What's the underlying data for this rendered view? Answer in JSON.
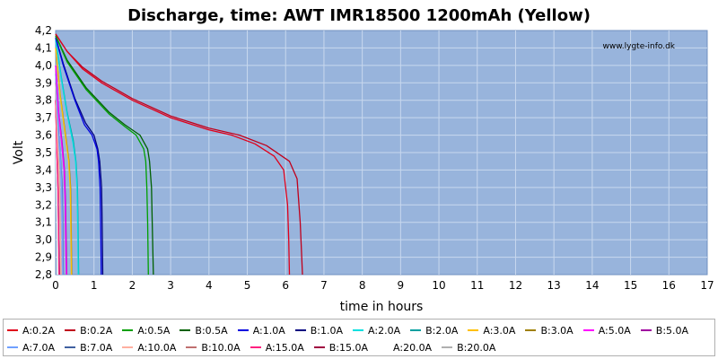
{
  "chart_data": {
    "type": "line",
    "title": "Discharge, time: AWT IMR18500 1200mAh (Yellow)",
    "xlabel": "time in hours",
    "ylabel": "Volt",
    "watermark": "www.lygte-info.dk",
    "xlim": [
      0,
      17
    ],
    "ylim": [
      2.8,
      4.2
    ],
    "xticks": [
      "0",
      "1",
      "2",
      "3",
      "4",
      "5",
      "6",
      "7",
      "8",
      "9",
      "10",
      "11",
      "12",
      "13",
      "14",
      "15",
      "16",
      "17"
    ],
    "yticks": [
      "2,8",
      "2,9",
      "3,0",
      "3,1",
      "3,2",
      "3,3",
      "3,4",
      "3,5",
      "3,6",
      "3,7",
      "3,8",
      "3,9",
      "4,0",
      "4,1",
      "4,2"
    ],
    "grid": true,
    "legend_position": "bottom",
    "colors": {
      "plot_bg": "#98b4dc",
      "grid": "#c8d8ee",
      "frame": "#7090c0"
    },
    "series": [
      {
        "name": "A:0.2A",
        "color": "#e0001b",
        "points": [
          [
            0,
            4.18
          ],
          [
            0.3,
            4.08
          ],
          [
            0.7,
            3.98
          ],
          [
            1.2,
            3.9
          ],
          [
            2,
            3.8
          ],
          [
            3,
            3.7
          ],
          [
            4,
            3.63
          ],
          [
            4.6,
            3.6
          ],
          [
            5.2,
            3.55
          ],
          [
            5.7,
            3.48
          ],
          [
            5.95,
            3.4
          ],
          [
            6.05,
            3.2
          ],
          [
            6.08,
            3.0
          ],
          [
            6.1,
            2.8
          ]
        ]
      },
      {
        "name": "B:0.2A",
        "color": "#c0001b",
        "points": [
          [
            0,
            4.18
          ],
          [
            0.3,
            4.08
          ],
          [
            0.7,
            3.99
          ],
          [
            1.2,
            3.91
          ],
          [
            2,
            3.81
          ],
          [
            3,
            3.71
          ],
          [
            4,
            3.64
          ],
          [
            4.8,
            3.6
          ],
          [
            5.5,
            3.54
          ],
          [
            6.1,
            3.45
          ],
          [
            6.3,
            3.35
          ],
          [
            6.38,
            3.1
          ],
          [
            6.42,
            2.9
          ],
          [
            6.44,
            2.8
          ]
        ]
      },
      {
        "name": "A:0.5A",
        "color": "#00a000",
        "points": [
          [
            0,
            4.17
          ],
          [
            0.3,
            4.02
          ],
          [
            0.8,
            3.86
          ],
          [
            1.4,
            3.72
          ],
          [
            1.8,
            3.65
          ],
          [
            2.1,
            3.6
          ],
          [
            2.3,
            3.52
          ],
          [
            2.35,
            3.45
          ],
          [
            2.38,
            3.3
          ],
          [
            2.4,
            3.1
          ],
          [
            2.42,
            2.8
          ]
        ]
      },
      {
        "name": "B:0.5A",
        "color": "#006000",
        "points": [
          [
            0,
            4.17
          ],
          [
            0.3,
            4.03
          ],
          [
            0.8,
            3.87
          ],
          [
            1.4,
            3.73
          ],
          [
            1.8,
            3.66
          ],
          [
            2.2,
            3.6
          ],
          [
            2.4,
            3.52
          ],
          [
            2.45,
            3.45
          ],
          [
            2.5,
            3.3
          ],
          [
            2.52,
            3.1
          ],
          [
            2.55,
            2.8
          ]
        ]
      },
      {
        "name": "A:1.0A",
        "color": "#0000e0",
        "points": [
          [
            0,
            4.16
          ],
          [
            0.2,
            4.0
          ],
          [
            0.5,
            3.8
          ],
          [
            0.75,
            3.66
          ],
          [
            0.95,
            3.6
          ],
          [
            1.08,
            3.52
          ],
          [
            1.12,
            3.45
          ],
          [
            1.16,
            3.3
          ],
          [
            1.18,
            3.0
          ],
          [
            1.19,
            2.8
          ]
        ]
      },
      {
        "name": "B:1.0A",
        "color": "#000080",
        "points": [
          [
            0,
            4.16
          ],
          [
            0.2,
            4.01
          ],
          [
            0.5,
            3.81
          ],
          [
            0.78,
            3.67
          ],
          [
            1.0,
            3.6
          ],
          [
            1.1,
            3.52
          ],
          [
            1.15,
            3.45
          ],
          [
            1.2,
            3.3
          ],
          [
            1.22,
            3.0
          ],
          [
            1.23,
            2.8
          ]
        ]
      },
      {
        "name": "A:2.0A",
        "color": "#00e0e0",
        "points": [
          [
            0,
            4.15
          ],
          [
            0.15,
            3.92
          ],
          [
            0.3,
            3.72
          ],
          [
            0.45,
            3.56
          ],
          [
            0.52,
            3.45
          ],
          [
            0.56,
            3.3
          ],
          [
            0.58,
            3.0
          ],
          [
            0.59,
            2.8
          ]
        ]
      },
      {
        "name": "B:2.0A",
        "color": "#00a0a0",
        "points": [
          [
            0,
            4.15
          ],
          [
            0.15,
            3.93
          ],
          [
            0.3,
            3.73
          ],
          [
            0.46,
            3.57
          ],
          [
            0.53,
            3.45
          ],
          [
            0.57,
            3.3
          ],
          [
            0.59,
            3.0
          ],
          [
            0.6,
            2.8
          ]
        ]
      },
      {
        "name": "A:3.0A",
        "color": "#ffc000",
        "points": [
          [
            0,
            4.1
          ],
          [
            0.12,
            3.82
          ],
          [
            0.25,
            3.6
          ],
          [
            0.34,
            3.45
          ],
          [
            0.38,
            3.3
          ],
          [
            0.4,
            3.0
          ],
          [
            0.41,
            2.8
          ]
        ]
      },
      {
        "name": "B:3.0A",
        "color": "#a08000",
        "points": [
          [
            0,
            4.1
          ],
          [
            0.12,
            3.83
          ],
          [
            0.26,
            3.6
          ],
          [
            0.35,
            3.45
          ],
          [
            0.39,
            3.3
          ],
          [
            0.41,
            3.0
          ],
          [
            0.42,
            2.8
          ]
        ]
      },
      {
        "name": "A:5.0A",
        "color": "#ff00ff",
        "points": [
          [
            0,
            4.0
          ],
          [
            0.08,
            3.72
          ],
          [
            0.16,
            3.55
          ],
          [
            0.22,
            3.4
          ],
          [
            0.25,
            3.2
          ],
          [
            0.27,
            2.9
          ],
          [
            0.28,
            2.8
          ]
        ]
      },
      {
        "name": "B:5.0A",
        "color": "#a000a0",
        "points": [
          [
            0,
            4.0
          ],
          [
            0.08,
            3.73
          ],
          [
            0.17,
            3.55
          ],
          [
            0.23,
            3.4
          ],
          [
            0.26,
            3.2
          ],
          [
            0.28,
            2.9
          ],
          [
            0.29,
            2.8
          ]
        ]
      },
      {
        "name": "A:7.0A",
        "color": "#70a0ff",
        "points": [
          [
            0,
            3.95
          ],
          [
            0.06,
            3.65
          ],
          [
            0.12,
            3.48
          ],
          [
            0.16,
            3.3
          ],
          [
            0.18,
            3.0
          ],
          [
            0.19,
            2.8
          ]
        ]
      },
      {
        "name": "B:7.0A",
        "color": "#4060a0",
        "points": [
          [
            0,
            3.95
          ],
          [
            0.06,
            3.66
          ],
          [
            0.12,
            3.49
          ],
          [
            0.17,
            3.3
          ],
          [
            0.19,
            3.0
          ],
          [
            0.2,
            2.8
          ]
        ]
      },
      {
        "name": "A:10.0A",
        "color": "#ffb0a0",
        "points": [
          [
            0,
            3.9
          ],
          [
            0.04,
            3.6
          ],
          [
            0.08,
            3.42
          ],
          [
            0.11,
            3.2
          ],
          [
            0.13,
            2.9
          ],
          [
            0.14,
            2.8
          ]
        ]
      },
      {
        "name": "B:10.0A",
        "color": "#c07070",
        "points": [
          [
            0,
            3.9
          ],
          [
            0.04,
            3.61
          ],
          [
            0.08,
            3.43
          ],
          [
            0.11,
            3.2
          ],
          [
            0.13,
            2.9
          ],
          [
            0.14,
            2.8
          ]
        ]
      },
      {
        "name": "A:15.0A",
        "color": "#ff2080",
        "points": [
          [
            0,
            3.8
          ],
          [
            0.03,
            3.5
          ],
          [
            0.06,
            3.3
          ],
          [
            0.08,
            3.0
          ],
          [
            0.09,
            2.8
          ]
        ]
      },
      {
        "name": "B:15.0A",
        "color": "#a00040",
        "points": [
          [
            0,
            3.8
          ],
          [
            0.03,
            3.51
          ],
          [
            0.06,
            3.3
          ],
          [
            0.08,
            3.0
          ],
          [
            0.1,
            2.8
          ]
        ]
      },
      {
        "name": "A:20.0A",
        "color": "#ffffff",
        "points": [
          [
            0,
            3.7
          ],
          [
            0.02,
            3.4
          ],
          [
            0.04,
            3.1
          ],
          [
            0.05,
            2.8
          ]
        ]
      },
      {
        "name": "B:20.0A",
        "color": "#b0b0b0",
        "points": [
          [
            0,
            3.7
          ],
          [
            0.02,
            3.4
          ],
          [
            0.04,
            3.1
          ],
          [
            0.06,
            2.8
          ]
        ]
      }
    ]
  }
}
